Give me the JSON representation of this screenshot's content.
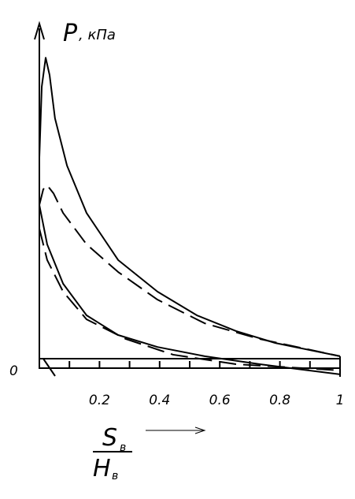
{
  "chart_data": {
    "type": "line",
    "ylabel": "P",
    "ylabel_unit": ", кПа",
    "xlabel": {
      "numerator": "S",
      "numerator_sub": "в",
      "denominator": "H",
      "denominator_sub": "в"
    },
    "xlim": [
      0,
      1
    ],
    "ylim": [
      -0.06,
      1.09
    ],
    "xticks": [
      0.2,
      0.4,
      0.6,
      0.8,
      1
    ],
    "xminor_ticks": [
      0.1,
      0.3,
      0.5,
      0.7,
      0.9
    ],
    "yticks": [
      0
    ],
    "series": [
      {
        "color": "#000000",
        "dash": false,
        "x": [
          0,
          0.008,
          0.021,
          0.034,
          0.052,
          0.092,
          0.157,
          0.262,
          0.393,
          0.524,
          0.654,
          0.785,
          1
        ],
        "values": [
          0.654,
          0.885,
          0.979,
          0.923,
          0.782,
          0.628,
          0.474,
          0.321,
          0.218,
          0.141,
          0.09,
          0.051,
          0.008
        ]
      },
      {
        "color": "#000000",
        "dash": false,
        "x": [
          0,
          0.026,
          0.079,
          0.157,
          0.262,
          0.393,
          0.55,
          0.733,
          1
        ],
        "values": [
          0.5,
          0.372,
          0.244,
          0.141,
          0.077,
          0.038,
          0.008,
          -0.018,
          -0.051
        ]
      },
      {
        "color": "#000000",
        "dash": true,
        "x": [
          0,
          0.013,
          0.026,
          0.047,
          0.079,
          0.157,
          0.262,
          0.393,
          0.55,
          0.733,
          1
        ],
        "values": [
          0.5,
          0.551,
          0.564,
          0.538,
          0.474,
          0.372,
          0.282,
          0.192,
          0.115,
          0.064,
          0.008
        ]
      },
      {
        "color": "#000000",
        "dash": true,
        "x": [
          0,
          0.026,
          0.079,
          0.157,
          0.288,
          0.445,
          0.654,
          1
        ],
        "values": [
          0.423,
          0.321,
          0.218,
          0.128,
          0.064,
          0.013,
          -0.018,
          -0.038
        ]
      }
    ]
  }
}
